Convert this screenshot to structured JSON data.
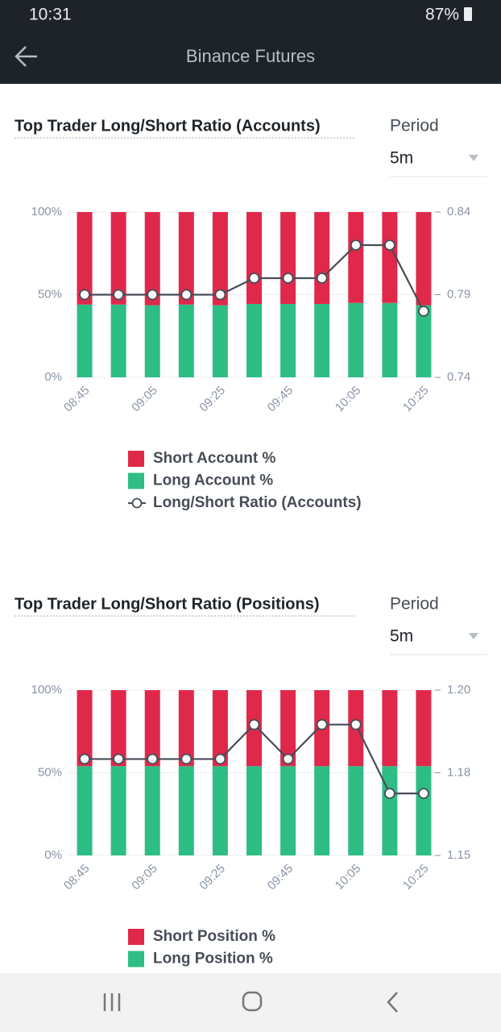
{
  "status_bar": {
    "time": "10:31",
    "battery": "87%"
  },
  "header": {
    "title": "Binance Futures"
  },
  "chart_data": [
    {
      "type": "bar",
      "stacked": true,
      "title": "Top Trader Long/Short Ratio (Accounts)",
      "period_label": "Period",
      "period": "5m",
      "categories": [
        "08:45",
        null,
        "09:05",
        null,
        "09:25",
        null,
        "09:45",
        null,
        "10:05",
        null,
        "10:25"
      ],
      "series": [
        {
          "name": "Short Account %",
          "color": "#e0294a",
          "values": [
            56,
            56,
            56.4,
            56,
            56.4,
            55.6,
            55.6,
            55.6,
            55,
            55,
            56.4
          ]
        },
        {
          "name": "Long Account %",
          "color": "#2ebd85",
          "values": [
            44,
            44,
            43.6,
            44,
            43.6,
            44.4,
            44.4,
            44.4,
            45,
            45,
            43.6
          ]
        },
        {
          "name": "Long/Short Ratio (Accounts)",
          "type": "line",
          "axis": "y2",
          "color": "#474d57",
          "values": [
            0.79,
            0.79,
            0.79,
            0.79,
            0.79,
            0.8,
            0.8,
            0.8,
            0.82,
            0.82,
            0.78
          ]
        }
      ],
      "ylim": [
        0,
        100
      ],
      "yticks": [
        {
          "value": 0,
          "label": "0%"
        },
        {
          "value": 50,
          "label": "50%"
        },
        {
          "value": 100,
          "label": "100%"
        }
      ],
      "y2lim": [
        0.74,
        0.84
      ],
      "y2ticks": [
        0.74,
        0.79,
        0.84
      ],
      "grid": true
    },
    {
      "type": "bar",
      "stacked": true,
      "title": "Top Trader Long/Short Ratio (Positions)",
      "period_label": "Period",
      "period": "5m",
      "categories": [
        "08:45",
        null,
        "09:05",
        null,
        "09:25",
        null,
        "09:45",
        null,
        "10:05",
        null,
        "10:25"
      ],
      "series": [
        {
          "name": "Short Position %",
          "color": "#e0294a",
          "values": [
            46,
            46,
            46,
            46,
            46,
            46,
            46,
            46,
            46,
            46,
            46
          ]
        },
        {
          "name": "Long Position %",
          "color": "#2ebd85",
          "values": [
            54,
            54,
            54,
            54,
            54,
            54,
            54,
            54,
            54,
            54,
            54
          ]
        },
        {
          "type": "line",
          "axis": "y2",
          "color": "#474d57",
          "values": [
            1.18,
            1.18,
            1.18,
            1.18,
            1.18,
            1.19,
            1.18,
            1.19,
            1.19,
            1.17,
            1.17
          ]
        }
      ],
      "ylim": [
        0,
        100
      ],
      "yticks": [
        {
          "value": 0,
          "label": "0%"
        },
        {
          "value": 50,
          "label": "50%"
        },
        {
          "value": 100,
          "label": "100%"
        }
      ],
      "y2lim": [
        1.152,
        1.2
      ],
      "y2ticks": [
        {
          "value": 1.152,
          "label": "1.15"
        },
        {
          "value": 1.176,
          "label": "1.18"
        },
        {
          "value": 1.2,
          "label": "1.20"
        }
      ],
      "grid": true
    }
  ]
}
